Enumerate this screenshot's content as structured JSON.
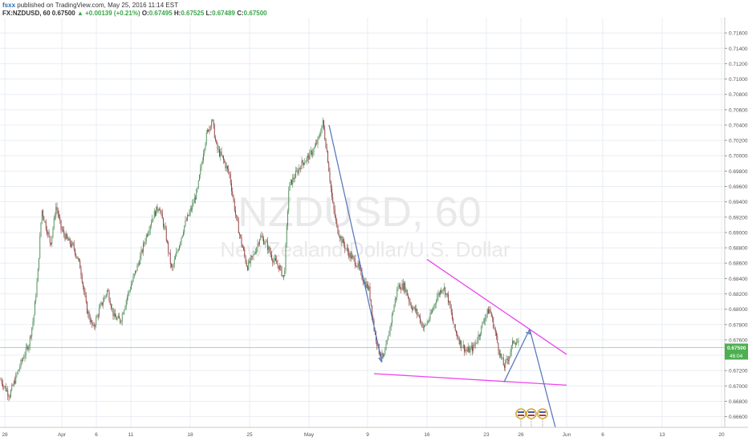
{
  "header": {
    "user": "fsxx",
    "published_text": "published on TradingView.com, May 25, 2016 11:14 EST",
    "symbol": "FX:NZDUSD, 60",
    "last": "0.67500",
    "change_arrow": "▲",
    "change": "+0.00139 (+0.21%)",
    "o_label": "O:",
    "o_value": "0.67495",
    "h_label": "H:",
    "h_value": "0.67525",
    "l_label": "L:",
    "l_value": "0.67489",
    "c_label": "C:",
    "c_value": "0.67500"
  },
  "watermark": {
    "symbol": "NZDUSD, 60",
    "name": "New Zealand Dollar/U.S. Dollar"
  },
  "chart_data": {
    "type": "candlestick",
    "y_axis": {
      "position": "right",
      "range": [
        0.6646,
        0.718
      ],
      "ticks": [
        "0.71600",
        "0.71400",
        "0.71200",
        "0.71000",
        "0.70800",
        "0.70600",
        "0.70400",
        "0.70200",
        "0.70000",
        "0.69800",
        "0.69600",
        "0.69400",
        "0.69200",
        "0.69000",
        "0.68800",
        "0.68600",
        "0.68400",
        "0.68200",
        "0.68000",
        "0.67800",
        "0.67600",
        "0.67400",
        "0.67200",
        "0.67000",
        "0.66800",
        "0.66600"
      ]
    },
    "x_axis": {
      "ticks": [
        {
          "label": "28",
          "x": 6
        },
        {
          "label": "Apr",
          "x": 77
        },
        {
          "label": "6",
          "x": 120
        },
        {
          "label": "11",
          "x": 163
        },
        {
          "label": "18",
          "x": 237
        },
        {
          "label": "25",
          "x": 311
        },
        {
          "label": "May",
          "x": 385
        },
        {
          "label": "9",
          "x": 458
        },
        {
          "label": "16",
          "x": 532
        },
        {
          "label": "23",
          "x": 606
        },
        {
          "label": "26",
          "x": 649
        },
        {
          "label": "Jun",
          "x": 706
        },
        {
          "label": "6",
          "x": 751
        },
        {
          "label": "13",
          "x": 825
        },
        {
          "label": "20",
          "x": 899
        }
      ]
    },
    "price_path": [
      {
        "x": 0,
        "y": 0.671
      },
      {
        "x": 6,
        "y": 0.6698
      },
      {
        "x": 12,
        "y": 0.6688
      },
      {
        "x": 20,
        "y": 0.6712
      },
      {
        "x": 28,
        "y": 0.6735
      },
      {
        "x": 36,
        "y": 0.6755
      },
      {
        "x": 42,
        "y": 0.679
      },
      {
        "x": 47,
        "y": 0.6845
      },
      {
        "x": 52,
        "y": 0.693
      },
      {
        "x": 58,
        "y": 0.6905
      },
      {
        "x": 63,
        "y": 0.6885
      },
      {
        "x": 70,
        "y": 0.6935
      },
      {
        "x": 76,
        "y": 0.6905
      },
      {
        "x": 84,
        "y": 0.689
      },
      {
        "x": 92,
        "y": 0.688
      },
      {
        "x": 100,
        "y": 0.6855
      },
      {
        "x": 108,
        "y": 0.68
      },
      {
        "x": 116,
        "y": 0.6775
      },
      {
        "x": 124,
        "y": 0.68
      },
      {
        "x": 134,
        "y": 0.6825
      },
      {
        "x": 142,
        "y": 0.679
      },
      {
        "x": 150,
        "y": 0.6785
      },
      {
        "x": 158,
        "y": 0.6815
      },
      {
        "x": 166,
        "y": 0.684
      },
      {
        "x": 174,
        "y": 0.6865
      },
      {
        "x": 182,
        "y": 0.6895
      },
      {
        "x": 190,
        "y": 0.692
      },
      {
        "x": 198,
        "y": 0.6935
      },
      {
        "x": 206,
        "y": 0.69
      },
      {
        "x": 214,
        "y": 0.685
      },
      {
        "x": 222,
        "y": 0.688
      },
      {
        "x": 230,
        "y": 0.691
      },
      {
        "x": 238,
        "y": 0.693
      },
      {
        "x": 246,
        "y": 0.6955
      },
      {
        "x": 254,
        "y": 0.701
      },
      {
        "x": 258,
        "y": 0.703
      },
      {
        "x": 264,
        "y": 0.7048
      },
      {
        "x": 270,
        "y": 0.701
      },
      {
        "x": 278,
        "y": 0.6995
      },
      {
        "x": 286,
        "y": 0.6975
      },
      {
        "x": 294,
        "y": 0.692
      },
      {
        "x": 300,
        "y": 0.689
      },
      {
        "x": 308,
        "y": 0.6855
      },
      {
        "x": 316,
        "y": 0.687
      },
      {
        "x": 324,
        "y": 0.6895
      },
      {
        "x": 332,
        "y": 0.6885
      },
      {
        "x": 340,
        "y": 0.6865
      },
      {
        "x": 348,
        "y": 0.6855
      },
      {
        "x": 354,
        "y": 0.684
      },
      {
        "x": 360,
        "y": 0.696
      },
      {
        "x": 368,
        "y": 0.6975
      },
      {
        "x": 376,
        "y": 0.699
      },
      {
        "x": 384,
        "y": 0.6998
      },
      {
        "x": 392,
        "y": 0.701
      },
      {
        "x": 398,
        "y": 0.7025
      },
      {
        "x": 402,
        "y": 0.7045
      },
      {
        "x": 408,
        "y": 0.7
      },
      {
        "x": 414,
        "y": 0.694
      },
      {
        "x": 420,
        "y": 0.6905
      },
      {
        "x": 428,
        "y": 0.6885
      },
      {
        "x": 436,
        "y": 0.687
      },
      {
        "x": 444,
        "y": 0.686
      },
      {
        "x": 452,
        "y": 0.684
      },
      {
        "x": 460,
        "y": 0.6825
      },
      {
        "x": 466,
        "y": 0.6775
      },
      {
        "x": 472,
        "y": 0.6745
      },
      {
        "x": 478,
        "y": 0.6735
      },
      {
        "x": 484,
        "y": 0.6765
      },
      {
        "x": 490,
        "y": 0.68
      },
      {
        "x": 496,
        "y": 0.683
      },
      {
        "x": 504,
        "y": 0.683
      },
      {
        "x": 512,
        "y": 0.6805
      },
      {
        "x": 520,
        "y": 0.6795
      },
      {
        "x": 528,
        "y": 0.6775
      },
      {
        "x": 536,
        "y": 0.679
      },
      {
        "x": 544,
        "y": 0.6815
      },
      {
        "x": 552,
        "y": 0.683
      },
      {
        "x": 558,
        "y": 0.6815
      },
      {
        "x": 566,
        "y": 0.6775
      },
      {
        "x": 574,
        "y": 0.6755
      },
      {
        "x": 582,
        "y": 0.6745
      },
      {
        "x": 590,
        "y": 0.675
      },
      {
        "x": 598,
        "y": 0.677
      },
      {
        "x": 604,
        "y": 0.679
      },
      {
        "x": 610,
        "y": 0.68
      },
      {
        "x": 616,
        "y": 0.6775
      },
      {
        "x": 622,
        "y": 0.6745
      },
      {
        "x": 628,
        "y": 0.6725
      },
      {
        "x": 634,
        "y": 0.6738
      },
      {
        "x": 640,
        "y": 0.676
      },
      {
        "x": 646,
        "y": 0.6755
      }
    ],
    "last_price": {
      "value": 0.675,
      "label": "0.67500",
      "color": "#4caf50"
    },
    "countdown_label": "46:04",
    "drawings": [
      {
        "kind": "line",
        "color": "#ee44ee",
        "from": {
          "x": 532,
          "y": 0.6865
        },
        "to": {
          "x": 706,
          "y": 0.6741
        }
      },
      {
        "kind": "line",
        "color": "#ee44ee",
        "from": {
          "x": 466,
          "y": 0.6716
        },
        "to": {
          "x": 706,
          "y": 0.6701
        }
      },
      {
        "kind": "line",
        "color": "#5b7bbd",
        "from": {
          "x": 410,
          "y": 0.704
        },
        "to": {
          "x": 476,
          "y": 0.6731
        },
        "arrow": true
      },
      {
        "kind": "line",
        "color": "#5b7bbd",
        "from": {
          "x": 628,
          "y": 0.6705
        },
        "to": {
          "x": 660,
          "y": 0.6774
        },
        "arrow": true
      },
      {
        "kind": "line",
        "color": "#5b7bbd",
        "from": {
          "x": 660,
          "y": 0.6774
        },
        "to": {
          "x": 692,
          "y": 0.6646
        }
      }
    ],
    "event_markers": [
      {
        "x": 649
      },
      {
        "x": 662
      },
      {
        "x": 676
      }
    ],
    "colors": {
      "up": "#4c8a55",
      "down": "#8b3b3b",
      "bg": "#ffffff",
      "grid": "#e8eef3"
    }
  }
}
